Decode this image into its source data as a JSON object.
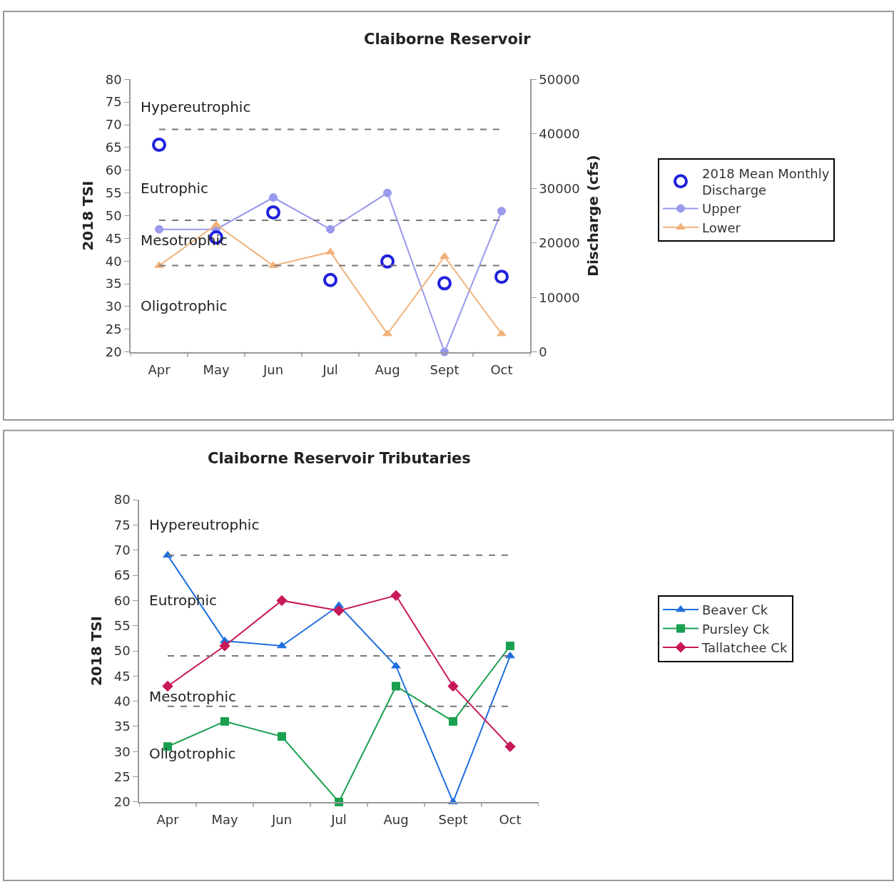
{
  "chart_data": [
    {
      "type": "line",
      "title": "Claiborne Reservoir",
      "ylabel": "2018 TSI",
      "y2label": "Discharge (cfs)",
      "categories": [
        "Apr",
        "May",
        "Jun",
        "Jul",
        "Aug",
        "Sept",
        "Oct"
      ],
      "series": [
        {
          "name": "Upper",
          "color": "#9999ee",
          "marker": "circle",
          "values": [
            47,
            47,
            54,
            47,
            55,
            20,
            51
          ]
        },
        {
          "name": "Lower",
          "color": "#f0b27a",
          "marker": "triangle",
          "values": [
            39,
            48,
            39,
            42,
            24,
            41,
            24
          ]
        },
        {
          "name": "2018 Mean Monthly Discharge",
          "type": "scatter",
          "axis": "y2",
          "color": "#2020dd",
          "marker": "circle",
          "values": [
            38000,
            21000,
            25600,
            13200,
            16600,
            12600,
            13800
          ]
        }
      ],
      "ylim": [
        20,
        80
      ],
      "yticks": [
        20,
        25,
        30,
        35,
        40,
        45,
        50,
        55,
        60,
        65,
        70,
        75,
        80
      ],
      "y2lim": [
        0,
        50000
      ],
      "y2ticks": [
        0,
        10000,
        20000,
        30000,
        40000,
        50000
      ],
      "ref_lines": [
        {
          "axis": "y",
          "value": 69,
          "color": "#777777",
          "line_style": "dashed"
        },
        {
          "axis": "y",
          "value": 49,
          "color": "#777777",
          "line_style": "dashed"
        },
        {
          "axis": "y",
          "value": 39,
          "color": "#777777",
          "line_style": "dashed"
        }
      ],
      "annotations": [
        "Hypereutrophic",
        "Eutrophic",
        "Mesotrophic",
        "Oligotrophic"
      ],
      "legend": "right"
    },
    {
      "type": "line",
      "title": "Claiborne Reservoir Tributaries",
      "ylabel": "2018 TSI",
      "categories": [
        "Apr",
        "May",
        "Jun",
        "Jul",
        "Aug",
        "Sept",
        "Oct"
      ],
      "series": [
        {
          "name": "Beaver Ck",
          "color": "#1f6fe0",
          "marker": "triangle",
          "values": [
            69,
            52,
            51,
            59,
            47,
            20,
            49
          ]
        },
        {
          "name": "Pursley Ck",
          "color": "#1aa050",
          "marker": "square",
          "values": [
            31,
            36,
            33,
            20,
            43,
            36,
            51
          ]
        },
        {
          "name": "Tallatchee Ck",
          "color": "#c8185a",
          "marker": "diamond",
          "values": [
            43,
            51,
            60,
            58,
            61,
            43,
            31
          ]
        }
      ],
      "ylim": [
        20,
        80
      ],
      "yticks": [
        20,
        25,
        30,
        35,
        40,
        45,
        50,
        55,
        60,
        65,
        70,
        75,
        80
      ],
      "ref_lines": [
        {
          "axis": "y",
          "value": 69,
          "color": "#777777",
          "line_style": "dashed"
        },
        {
          "axis": "y",
          "value": 49,
          "color": "#777777",
          "line_style": "dashed"
        },
        {
          "axis": "y",
          "value": 39,
          "color": "#777777",
          "line_style": "dashed"
        }
      ],
      "annotations": [
        "Hypereutrophic",
        "Eutrophic",
        "Mesotrophic",
        "Oligotrophic"
      ],
      "legend": "right"
    }
  ]
}
